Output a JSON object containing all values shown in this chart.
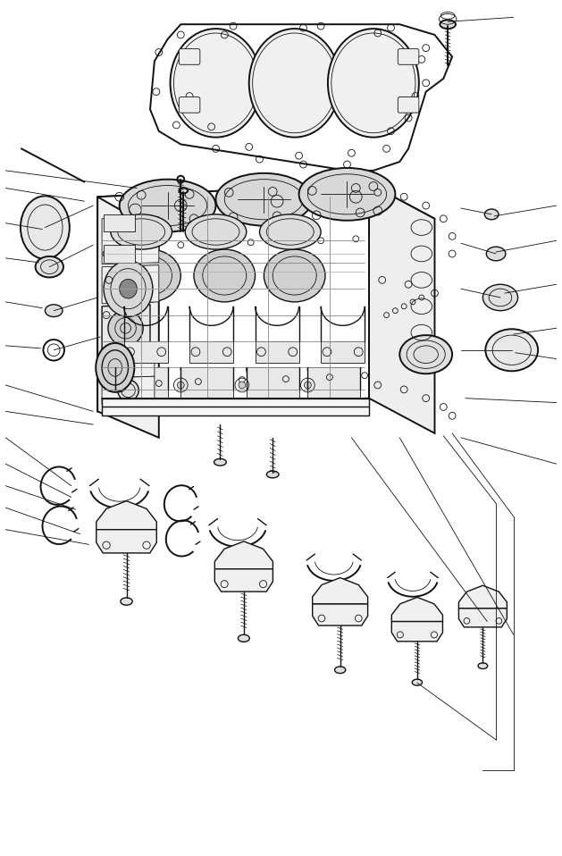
{
  "bg_color": "#ffffff",
  "line_color": "#111111",
  "figsize": [
    6.29,
    9.58
  ],
  "dpi": 100,
  "lw_main": 1.0,
  "lw_thin": 0.6,
  "lw_thick": 1.4
}
